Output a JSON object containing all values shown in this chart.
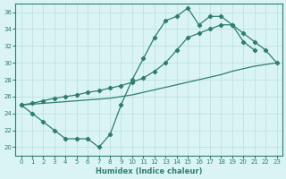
{
  "line1_x": [
    0,
    1,
    2,
    3,
    4,
    5,
    6,
    7,
    8,
    9,
    10,
    11,
    12,
    13,
    14,
    15,
    16,
    17,
    18,
    19,
    20,
    21
  ],
  "line1_y": [
    25.0,
    24.0,
    23.0,
    22.0,
    21.0,
    21.0,
    21.0,
    20.0,
    21.5,
    25.0,
    28.0,
    30.5,
    33.0,
    35.0,
    35.5,
    36.5,
    34.5,
    35.5,
    35.5,
    34.5,
    32.5,
    31.5
  ],
  "line2_x": [
    0,
    1,
    2,
    3,
    4,
    5,
    6,
    7,
    8,
    9,
    10,
    11,
    12,
    13,
    14,
    15,
    16,
    17,
    18,
    19,
    20,
    21,
    22,
    23
  ],
  "line2_y": [
    25.0,
    25.2,
    25.5,
    25.8,
    26.0,
    26.2,
    26.5,
    26.7,
    27.0,
    27.3,
    27.7,
    28.2,
    29.0,
    30.0,
    31.5,
    33.0,
    33.5,
    34.0,
    34.5,
    34.5,
    33.5,
    32.5,
    31.5,
    30.0
  ],
  "line3_x": [
    0,
    1,
    2,
    3,
    4,
    5,
    6,
    7,
    8,
    9,
    10,
    11,
    12,
    13,
    14,
    15,
    16,
    17,
    18,
    19,
    20,
    21,
    22,
    23
  ],
  "line3_y": [
    25.0,
    25.1,
    25.2,
    25.3,
    25.4,
    25.5,
    25.6,
    25.7,
    25.8,
    26.0,
    26.2,
    26.5,
    26.8,
    27.1,
    27.4,
    27.7,
    28.0,
    28.3,
    28.6,
    29.0,
    29.3,
    29.6,
    29.8,
    30.0
  ],
  "xlabel": "Humidex (Indice chaleur)",
  "color": "#2E7D6E",
  "bg_color": "#daf4f4",
  "grid_color": "#b8dede",
  "ylim": [
    19,
    37
  ],
  "xlim": [
    -0.5,
    23.5
  ],
  "yticks": [
    20,
    22,
    24,
    26,
    28,
    30,
    32,
    34,
    36
  ],
  "xticks": [
    0,
    1,
    2,
    3,
    4,
    5,
    6,
    7,
    8,
    9,
    10,
    11,
    12,
    13,
    14,
    15,
    16,
    17,
    18,
    19,
    20,
    21,
    22,
    23
  ]
}
